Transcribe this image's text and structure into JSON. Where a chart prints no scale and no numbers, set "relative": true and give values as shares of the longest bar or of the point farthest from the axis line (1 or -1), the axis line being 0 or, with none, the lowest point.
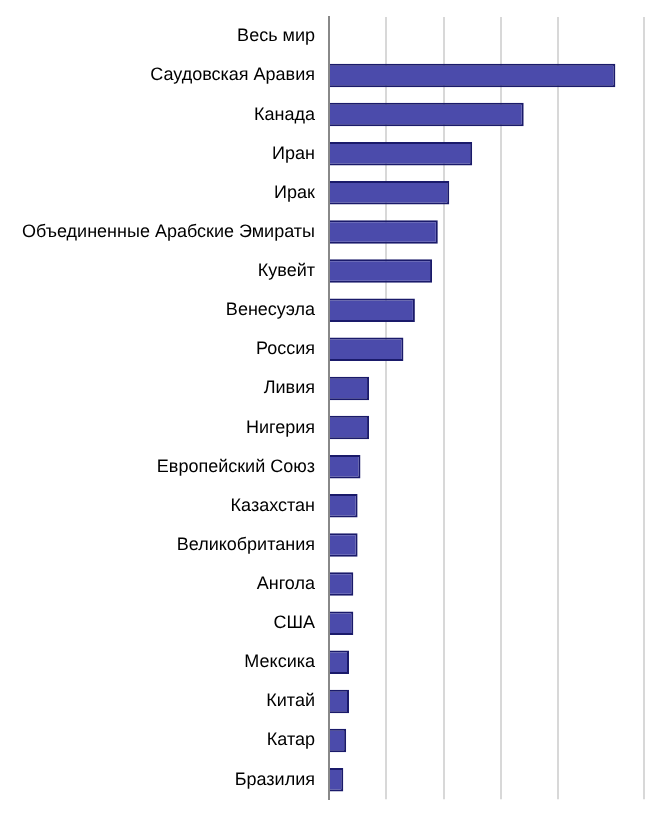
{
  "chart_data": {
    "type": "bar",
    "orientation": "horizontal",
    "relative": true,
    "grid": "x",
    "color": "#4b4bab",
    "categories": [
      "Весь мир",
      "Саудовская Аравия",
      "Канада",
      "Иран",
      "Ирак",
      "Объединенные Арабские Эмираты",
      "Кувейт",
      "Венесуэла",
      "Россия",
      "Ливия",
      "Нигерия",
      "Европейский Союз",
      "Казахстан",
      "Великобритания",
      "Ангола",
      "США",
      "Мексика",
      "Китай",
      "Катар",
      "Бразилия"
    ],
    "values": [
      null,
      1,
      0.68,
      0.5,
      0.42,
      0.38,
      0.36,
      0.3,
      0.26,
      0.14,
      0.14,
      0.11,
      0.1,
      0.1,
      0.085,
      0.085,
      0.07,
      0.07,
      0.06,
      0.05
    ]
  }
}
